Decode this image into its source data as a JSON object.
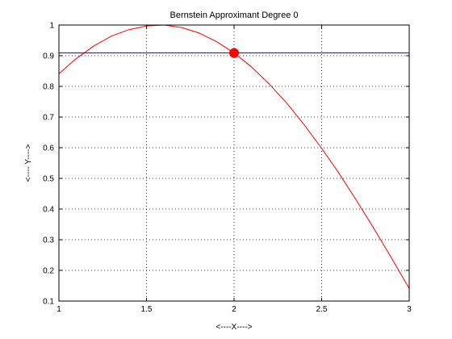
{
  "chart_data": {
    "type": "line",
    "title": "Bernstein Approximant Degree 0",
    "xlabel": "<----X---->",
    "ylabel": "<---- Y---->",
    "xlim": [
      1,
      3
    ],
    "ylim": [
      0.1,
      1
    ],
    "xticks": [
      1,
      1.5,
      2,
      2.5,
      3
    ],
    "yticks": [
      0.1,
      0.2,
      0.3,
      0.4,
      0.5,
      0.6,
      0.7,
      0.8,
      0.9,
      1
    ],
    "xtick_labels": [
      "1",
      "1.5",
      "2",
      "2.5",
      "3"
    ],
    "ytick_labels": [
      "0.1",
      "0.2",
      "0.3",
      "0.4",
      "0.5",
      "0.6",
      "0.7",
      "0.8",
      "0.9",
      "1"
    ],
    "grid": true,
    "series": [
      {
        "color": "#ff0000",
        "x": [
          1,
          1.1,
          1.2,
          1.3,
          1.4,
          1.5,
          1.6,
          1.7,
          1.8,
          1.9,
          2,
          2.1,
          2.2,
          2.3,
          2.4,
          2.5,
          2.6,
          2.7,
          2.8,
          2.9,
          3
        ],
        "y": [
          0.841,
          0.891,
          0.932,
          0.964,
          0.985,
          0.997,
          1.0,
          0.992,
          0.974,
          0.946,
          0.909,
          0.863,
          0.808,
          0.746,
          0.675,
          0.598,
          0.516,
          0.427,
          0.335,
          0.239,
          0.141
        ]
      },
      {
        "color": "#0000ff",
        "x": [
          1,
          3
        ],
        "y": [
          0.909,
          0.909
        ]
      }
    ],
    "markers": [
      {
        "x": 2,
        "y": 0.909,
        "color": "#ff0000"
      }
    ]
  }
}
